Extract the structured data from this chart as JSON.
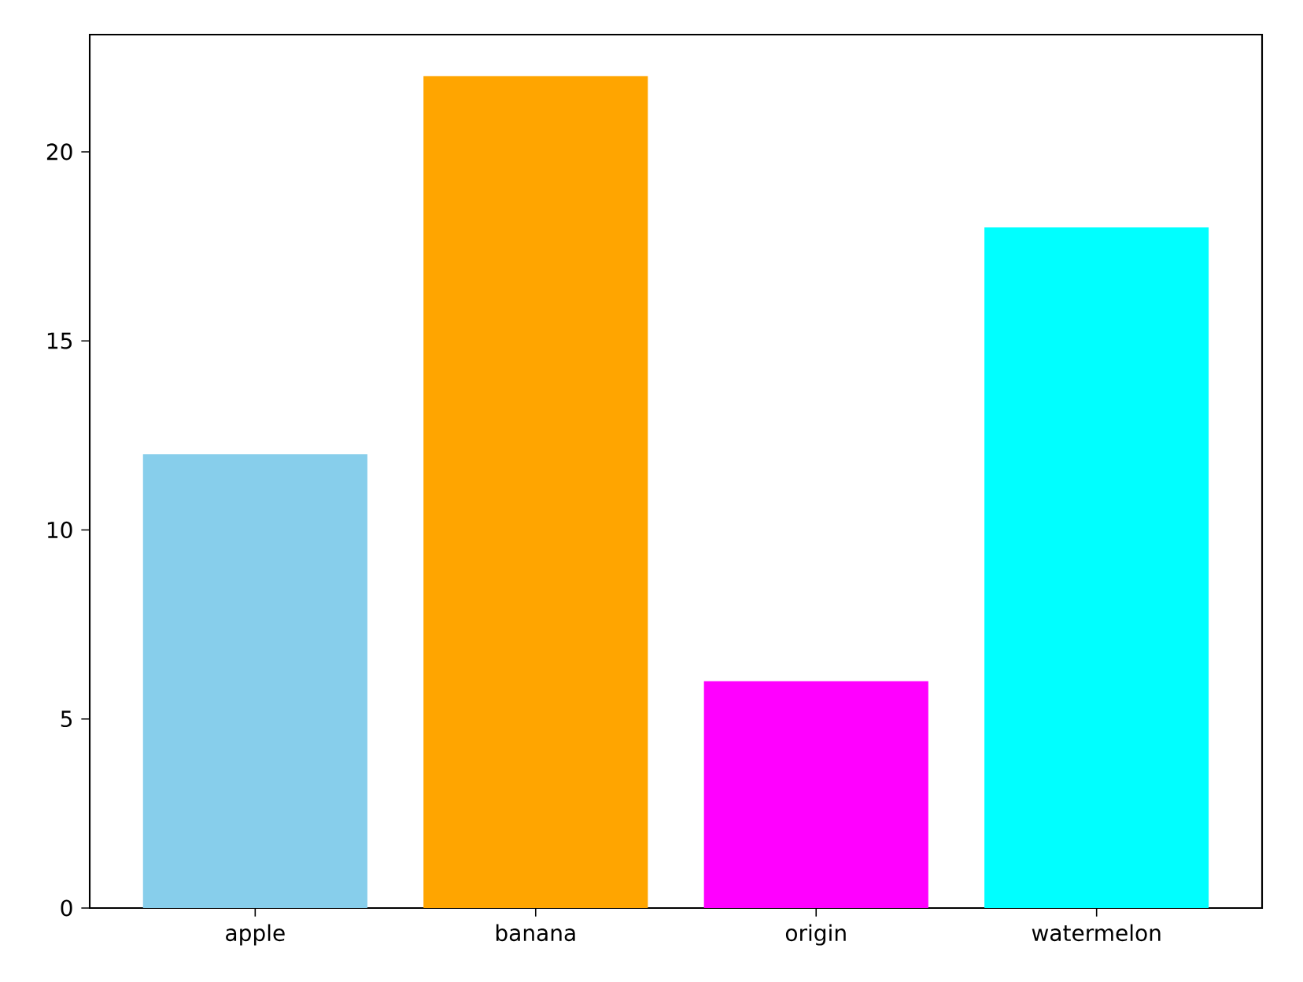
{
  "chart_data": {
    "type": "bar",
    "categories": [
      "apple",
      "banana",
      "origin",
      "watermelon"
    ],
    "values": [
      12,
      22,
      6,
      18
    ],
    "colors": [
      "#87ceeb",
      "#ffa500",
      "#ff00ff",
      "#00ffff"
    ],
    "ylim": [
      0,
      23.1
    ],
    "yticks": [
      0,
      5,
      10,
      15,
      20
    ]
  }
}
